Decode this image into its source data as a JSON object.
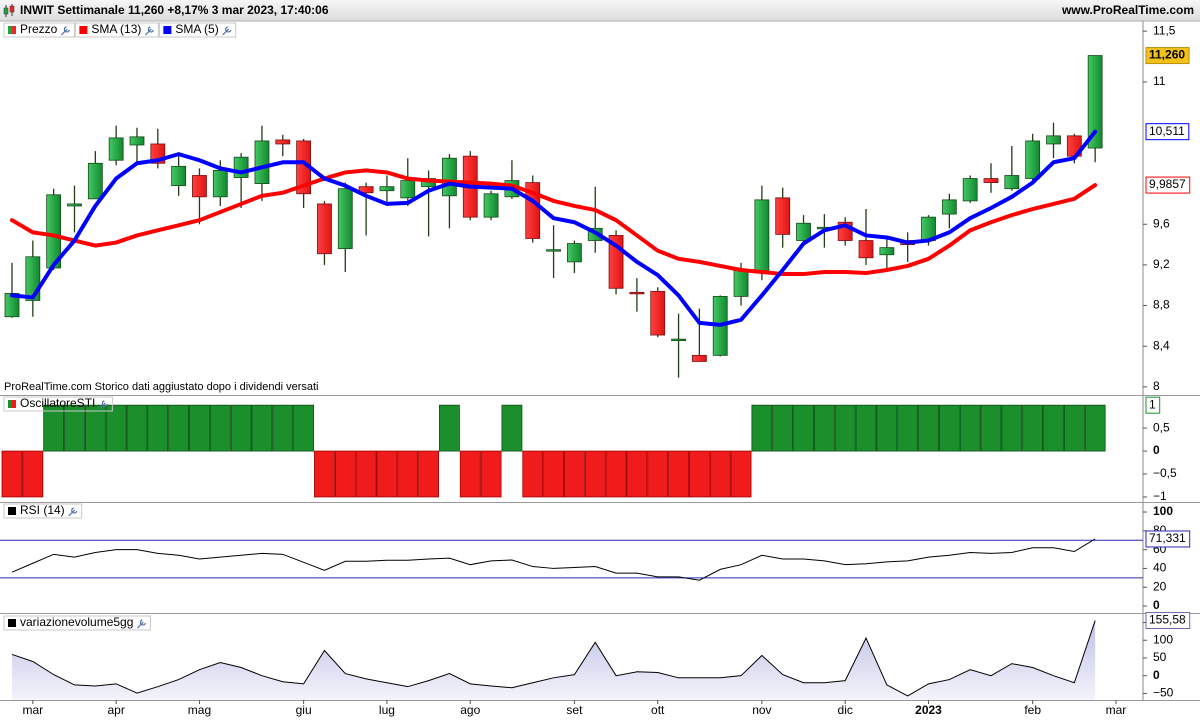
{
  "chart_data": [
    {
      "type": "candlestick",
      "title": "INWIT Settimanale 11,260 +8,17% 3 mar 2023, 17:40:06",
      "source": "www.ProRealTime.com",
      "note": "ProRealTime.com Storico dati aggiustato dopo i dividendi versati",
      "name": "Prezzo",
      "open": [
        8.69,
        8.85,
        9.17,
        9.78,
        9.85,
        10.23,
        10.38,
        10.39,
        9.98,
        10.08,
        9.87,
        10.06,
        10.0,
        10.43,
        10.42,
        9.8,
        9.36,
        9.97,
        9.93,
        9.86,
        9.97,
        9.88,
        10.27,
        9.67,
        9.87,
        10.01,
        9.35,
        9.23,
        9.44,
        9.49,
        8.93,
        8.94,
        8.47,
        8.31,
        8.31,
        8.89,
        9.12,
        9.86,
        9.44,
        9.56,
        9.62,
        9.44,
        9.3,
        9.44,
        9.44,
        9.7,
        9.83,
        10.05,
        9.95,
        10.05,
        10.39,
        10.47,
        10.35
      ],
      "high": [
        9.22,
        9.44,
        9.95,
        9.98,
        10.32,
        10.57,
        10.55,
        10.54,
        10.27,
        10.15,
        10.23,
        10.3,
        10.57,
        10.48,
        10.44,
        9.83,
        10.01,
        10.01,
        10.08,
        10.25,
        10.13,
        10.29,
        10.32,
        9.93,
        10.23,
        10.08,
        9.59,
        9.44,
        9.97,
        9.54,
        9.07,
        8.98,
        8.72,
        8.77,
        8.9,
        9.22,
        9.98,
        9.96,
        9.69,
        9.7,
        9.67,
        9.75,
        9.49,
        9.52,
        9.69,
        9.9,
        10.08,
        10.2,
        10.37,
        10.49,
        10.6,
        10.49,
        11.26
      ],
      "low": [
        8.68,
        8.69,
        9.15,
        9.52,
        9.85,
        10.18,
        10.18,
        10.15,
        9.88,
        9.6,
        9.78,
        9.76,
        9.83,
        10.27,
        9.76,
        9.2,
        9.13,
        9.49,
        9.78,
        9.78,
        9.48,
        9.56,
        9.64,
        9.64,
        9.85,
        9.42,
        9.07,
        9.12,
        9.32,
        8.91,
        8.74,
        8.49,
        8.09,
        8.25,
        8.3,
        8.8,
        9.05,
        9.37,
        9.39,
        9.37,
        9.39,
        9.2,
        9.15,
        9.23,
        9.39,
        9.56,
        9.81,
        9.91,
        9.93,
        10.01,
        10.25,
        10.2,
        10.21
      ],
      "close": [
        8.92,
        9.28,
        9.89,
        9.8,
        10.2,
        10.45,
        10.46,
        10.2,
        10.17,
        9.87,
        10.13,
        10.26,
        10.42,
        10.39,
        9.9,
        9.31,
        9.95,
        9.91,
        9.97,
        10.03,
        10.05,
        10.25,
        9.67,
        9.9,
        10.03,
        9.46,
        9.35,
        9.41,
        9.56,
        8.97,
        8.92,
        8.51,
        8.47,
        8.25,
        8.89,
        9.15,
        9.84,
        9.5,
        9.61,
        9.57,
        9.44,
        9.27,
        9.37,
        9.4,
        9.67,
        9.84,
        10.05,
        10.01,
        10.08,
        10.42,
        10.47,
        10.27,
        11.26
      ],
      "up_color": "#1fa33f",
      "down_color": "#f02626",
      "last_label": "11,260",
      "overlays": [
        {
          "name": "SMA (13)",
          "color": "#ff0000",
          "last_label": "9,9857",
          "values": [
            9.64,
            9.52,
            9.49,
            9.44,
            9.39,
            9.42,
            9.49,
            9.54,
            9.59,
            9.64,
            9.72,
            9.8,
            9.88,
            9.91,
            9.98,
            10.05,
            10.11,
            10.13,
            10.11,
            10.05,
            10.03,
            10.02,
            10.01,
            10.0,
            9.98,
            9.91,
            9.83,
            9.78,
            9.74,
            9.64,
            9.49,
            9.34,
            9.26,
            9.23,
            9.19,
            9.15,
            9.13,
            9.11,
            9.11,
            9.13,
            9.13,
            9.12,
            9.15,
            9.19,
            9.26,
            9.39,
            9.54,
            9.62,
            9.69,
            9.75,
            9.8,
            9.85,
            9.9857
          ]
        },
        {
          "name": "SMA (5)",
          "color": "#0000ff",
          "last_label": "10,511",
          "values": [
            8.9,
            8.88,
            9.2,
            9.44,
            9.78,
            10.05,
            10.2,
            10.23,
            10.29,
            10.23,
            10.15,
            10.11,
            10.16,
            10.21,
            10.21,
            10.05,
            9.98,
            9.88,
            9.8,
            9.81,
            9.93,
            10.0,
            9.97,
            9.96,
            9.95,
            9.83,
            9.66,
            9.62,
            9.52,
            9.39,
            9.23,
            9.1,
            8.9,
            8.63,
            8.61,
            8.66,
            8.9,
            9.15,
            9.41,
            9.54,
            9.59,
            9.49,
            9.47,
            9.42,
            9.44,
            9.52,
            9.66,
            9.76,
            9.87,
            10.01,
            10.21,
            10.25,
            10.511
          ]
        }
      ],
      "ylim": [
        7.92,
        11.6
      ],
      "yticks": [
        8,
        {
          "value": 8.4,
          "label": "8,4"
        },
        {
          "value": 8.8,
          "label": "8,8"
        },
        {
          "value": 9.2,
          "label": "9,2"
        },
        {
          "value": 9.6,
          "label": "9,6"
        },
        11,
        {
          "value": 11.5,
          "label": "11,5"
        }
      ]
    },
    {
      "type": "bar",
      "name": "OscillatoreSTI",
      "values": [
        -1,
        -1,
        1,
        1,
        1,
        1,
        1,
        1,
        1,
        1,
        1,
        1,
        1,
        1,
        1,
        -1,
        -1,
        -1,
        -1,
        -1,
        -1,
        1,
        -1,
        -1,
        1,
        -1,
        -1,
        -1,
        -1,
        -1,
        -1,
        -1,
        -1,
        -1,
        -1,
        -1,
        1,
        1,
        1,
        1,
        1,
        1,
        1,
        1,
        1,
        1,
        1,
        1,
        1,
        1,
        1,
        1,
        1
      ],
      "up_color": "#1a8f2c",
      "down_color": "#f01c1c",
      "last_label": "1",
      "ylim": [
        -1.11,
        1.2
      ],
      "yticks": [
        {
          "value": -1,
          "label": "−1"
        },
        {
          "value": -0.5,
          "label": "−0,5"
        },
        0,
        {
          "value": 0.5,
          "label": "0,5"
        }
      ]
    },
    {
      "type": "line",
      "name": "RSI (14)",
      "color": "#000000",
      "values": [
        36,
        45.5,
        55,
        52,
        57,
        60,
        60,
        56,
        54,
        50,
        52,
        54,
        56,
        55,
        46.5,
        38,
        47.6,
        47.6,
        48.7,
        48.7,
        50,
        51,
        44,
        48,
        49,
        42,
        40,
        41,
        42,
        35,
        35,
        31,
        31,
        27.5,
        39,
        44,
        54,
        50,
        50,
        48,
        44,
        45,
        47,
        48,
        52,
        54,
        57,
        56,
        57,
        62,
        62,
        58,
        71.331
      ],
      "levels": [
        30,
        70
      ],
      "level_color": "#2b2bb0",
      "last_label": "71,331",
      "ylim": [
        -7.4,
        109.6
      ],
      "yticks": [
        0,
        20,
        40,
        60,
        80,
        100
      ]
    },
    {
      "type": "area",
      "name": "variazionevolume5gg",
      "color": "#000000",
      "fill": "#d4d4ec",
      "values": [
        60,
        40,
        3,
        -26,
        -29,
        -23,
        -49,
        -31,
        -11,
        17,
        37,
        23,
        0,
        -17,
        -23,
        71,
        6,
        -9,
        -20,
        -31,
        -14,
        6,
        -23,
        -29,
        -34,
        -20,
        -6,
        3,
        94,
        0,
        11,
        9,
        -6,
        -6,
        -6,
        0,
        57,
        3,
        -20,
        -20,
        -14,
        106,
        -26,
        -57,
        -23,
        -11,
        17,
        0,
        34,
        23,
        0,
        -20,
        155.58
      ],
      "last_label": "155,58",
      "ylim": [
        -68.6,
        174
      ],
      "yticks": [
        {
          "value": -50,
          "label": "−50"
        },
        0,
        50,
        100,
        150
      ],
      "x_labels": [
        "mar",
        "apr",
        "mag",
        "giu",
        "lug",
        "ago",
        "set",
        "ott",
        "nov",
        "dic",
        "2023",
        "feb",
        "mar"
      ]
    }
  ]
}
